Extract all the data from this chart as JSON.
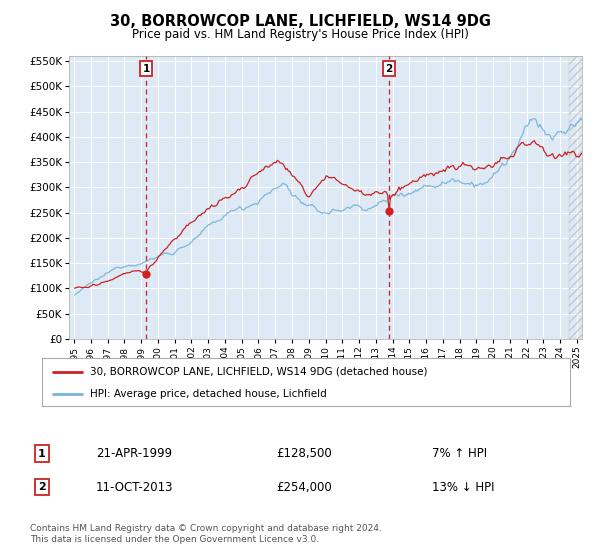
{
  "title": "30, BORROWCOP LANE, LICHFIELD, WS14 9DG",
  "subtitle": "Price paid vs. HM Land Registry's House Price Index (HPI)",
  "legend_line1": "30, BORROWCOP LANE, LICHFIELD, WS14 9DG (detached house)",
  "legend_line2": "HPI: Average price, detached house, Lichfield",
  "transaction1_date": "21-APR-1999",
  "transaction1_price": 128500,
  "transaction2_date": "11-OCT-2013",
  "transaction2_price": 254000,
  "transaction1_note": "7% ↑ HPI",
  "transaction2_note": "13% ↓ HPI",
  "footer": "Contains HM Land Registry data © Crown copyright and database right 2024.\nThis data is licensed under the Open Government Licence v3.0.",
  "hpi_color": "#7ab4d8",
  "price_color": "#cc2222",
  "grid_color": "#ffffff",
  "plot_bg": "#ddeaf5",
  "marker_color": "#cc2222",
  "vline_color": "#cc2222",
  "ylim_max": 560000,
  "t1_year": 1999.29,
  "t2_year": 2013.79
}
